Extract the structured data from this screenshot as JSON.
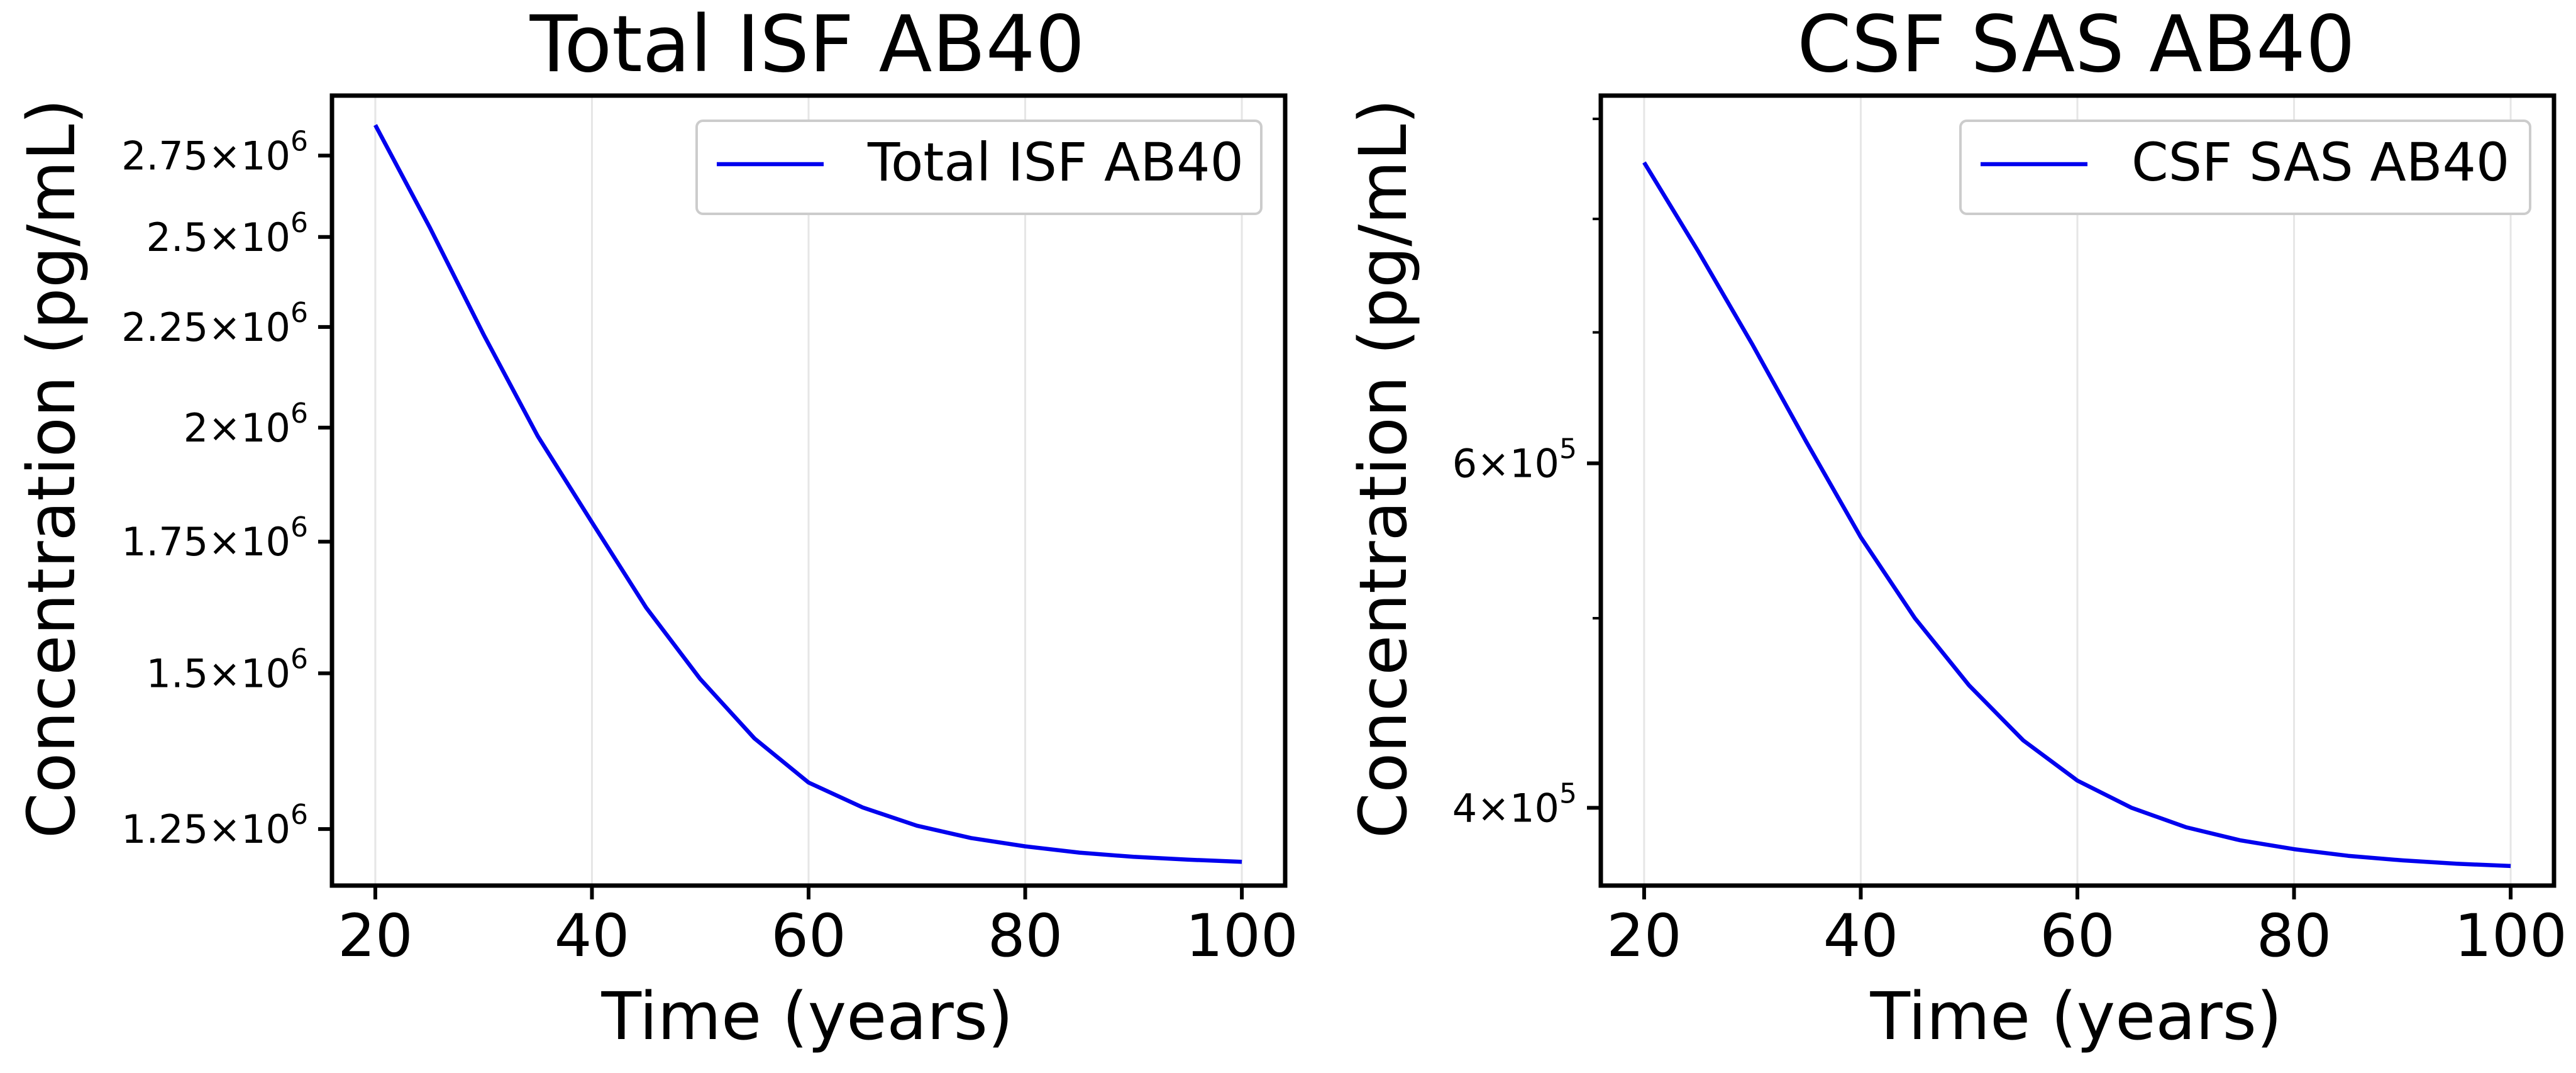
{
  "chart_data": [
    {
      "type": "line",
      "title": "Total ISF AB40",
      "xlabel": "Time (years)",
      "ylabel": "Concentration (pg/mL)",
      "yscale": "log",
      "xlim": [
        16,
        104
      ],
      "ylim": [
        1170000,
        2950000
      ],
      "xticks": [
        20,
        40,
        60,
        80,
        100
      ],
      "xtick_labels": [
        "20",
        "40",
        "60",
        "80",
        "100"
      ],
      "yticks": [
        {
          "value": 1250000,
          "mant": "1.25",
          "exp": "6"
        },
        {
          "value": 1500000,
          "mant": "1.5",
          "exp": "6"
        },
        {
          "value": 1750000,
          "mant": "1.75",
          "exp": "6"
        },
        {
          "value": 2000000,
          "mant": "2",
          "exp": "6"
        },
        {
          "value": 2250000,
          "mant": "2.25",
          "exp": "6"
        },
        {
          "value": 2500000,
          "mant": "2.5",
          "exp": "6"
        },
        {
          "value": 2750000,
          "mant": "2.75",
          "exp": "6"
        }
      ],
      "minor_yticks": [],
      "grid": "x",
      "legend": "top-right",
      "series": [
        {
          "name": "Total ISF AB40",
          "color": "#0000ee",
          "x": [
            20,
            25,
            30,
            35,
            40,
            45,
            50,
            55,
            60,
            65,
            70,
            75,
            80,
            85,
            90,
            95,
            100
          ],
          "y": [
            2850000,
            2530000,
            2230000,
            1980000,
            1790000,
            1620000,
            1490000,
            1390000,
            1320000,
            1282000,
            1255000,
            1237000,
            1225000,
            1216000,
            1210000,
            1206000,
            1203000
          ]
        }
      ]
    },
    {
      "type": "line",
      "title": "CSF SAS AB40",
      "xlabel": "Time (years)",
      "ylabel": "Concentration (pg/mL)",
      "yscale": "log",
      "xlim": [
        16,
        104
      ],
      "ylim": [
        365000,
        925000
      ],
      "xticks": [
        20,
        40,
        60,
        80,
        100
      ],
      "xtick_labels": [
        "20",
        "40",
        "60",
        "80",
        "100"
      ],
      "yticks": [
        {
          "value": 400000,
          "mant": "4",
          "exp": "5"
        },
        {
          "value": 600000,
          "mant": "6",
          "exp": "5"
        }
      ],
      "minor_yticks": [
        500000,
        700000,
        800000,
        900000
      ],
      "grid": "x",
      "legend": "top-right",
      "series": [
        {
          "name": "CSF SAS AB40",
          "color": "#0000ee",
          "x": [
            20,
            25,
            30,
            35,
            40,
            45,
            50,
            55,
            60,
            65,
            70,
            75,
            80,
            85,
            90,
            95,
            100
          ],
          "y": [
            855000,
            770000,
            690000,
            615000,
            550000,
            500000,
            462000,
            433000,
            413000,
            400000,
            391000,
            385000,
            381000,
            378000,
            376000,
            374500,
            373500
          ]
        }
      ]
    }
  ]
}
